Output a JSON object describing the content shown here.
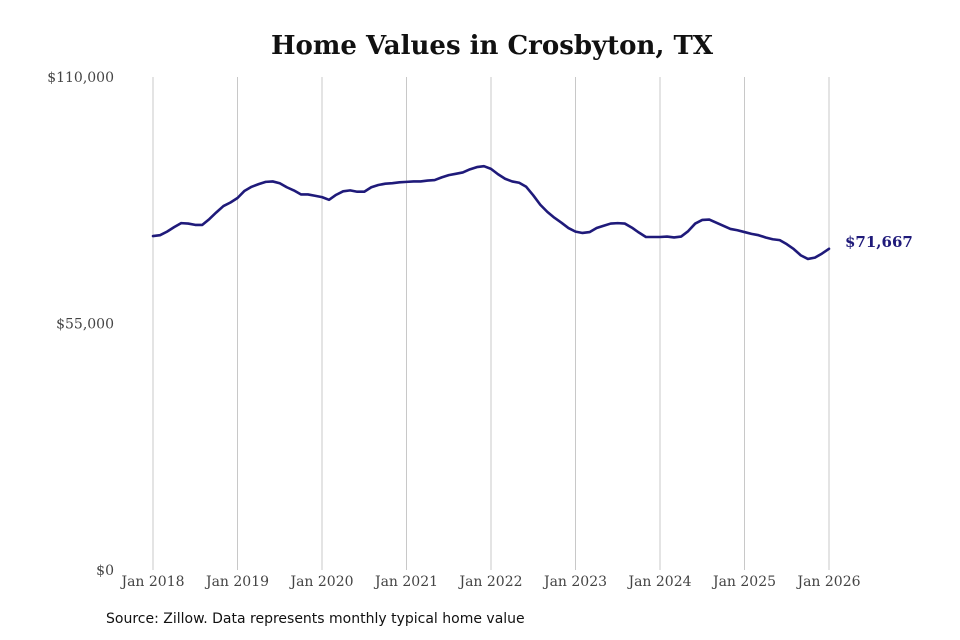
{
  "colors": {
    "line": "#1f1a7a",
    "grid": "#c8c8c8",
    "background": "#ffffff"
  },
  "source": "Source: Zillow. Data represents monthly typical home value",
  "chart_data": {
    "type": "line",
    "title": "Home Values in Crosbyton, TX",
    "xlabel": "",
    "ylabel": "",
    "ylim": [
      0,
      110000
    ],
    "y_ticks": [
      0,
      55000,
      110000
    ],
    "y_tick_labels": [
      "$0",
      "$55,000",
      "$110,000"
    ],
    "x_ticks": [
      "2018-01",
      "2019-01",
      "2020-01",
      "2021-01",
      "2022-01",
      "2023-01",
      "2024-01",
      "2025-01",
      "2026-01"
    ],
    "x_tick_labels": [
      "Jan 2018",
      "Jan 2019",
      "Jan 2020",
      "Jan 2021",
      "Jan 2022",
      "Jan 2023",
      "Jan 2024",
      "Jan 2025",
      "Jan 2026"
    ],
    "xlim": [
      "2018-01",
      "2026-01"
    ],
    "grid": "vertical at x ticks",
    "end_label": "$71,667",
    "series": [
      {
        "x": [
          "2018-01",
          "2018-02",
          "2018-03",
          "2018-04",
          "2018-05",
          "2018-06",
          "2018-07",
          "2018-08",
          "2018-09",
          "2018-10",
          "2018-11",
          "2018-12",
          "2019-01",
          "2019-02",
          "2019-03",
          "2019-04",
          "2019-05",
          "2019-06",
          "2019-07",
          "2019-08",
          "2019-09",
          "2019-10",
          "2019-11",
          "2019-12",
          "2020-01",
          "2020-02",
          "2020-03",
          "2020-04",
          "2020-05",
          "2020-06",
          "2020-07",
          "2020-08",
          "2020-09",
          "2020-10",
          "2020-11",
          "2020-12",
          "2021-01",
          "2021-02",
          "2021-03",
          "2021-04",
          "2021-05",
          "2021-06",
          "2021-07",
          "2021-08",
          "2021-09",
          "2021-10",
          "2021-11",
          "2021-12",
          "2022-01",
          "2022-02",
          "2022-03",
          "2022-04",
          "2022-05",
          "2022-06",
          "2022-07",
          "2022-08",
          "2022-09",
          "2022-10",
          "2022-11",
          "2022-12",
          "2023-01",
          "2023-02",
          "2023-03",
          "2023-04",
          "2023-05",
          "2023-06",
          "2023-07",
          "2023-08",
          "2023-09",
          "2023-10",
          "2023-11",
          "2023-12",
          "2024-01",
          "2024-02",
          "2024-03",
          "2024-04",
          "2024-05",
          "2024-06",
          "2024-07",
          "2024-08",
          "2024-09",
          "2024-10",
          "2024-11",
          "2024-12",
          "2025-01",
          "2025-02",
          "2025-03",
          "2025-04",
          "2025-05",
          "2025-06",
          "2025-07",
          "2025-08",
          "2025-09",
          "2025-10",
          "2025-11",
          "2025-12",
          "2026-01"
        ],
        "values": [
          74500,
          74700,
          75500,
          76500,
          77400,
          77300,
          77000,
          77000,
          78300,
          79800,
          81200,
          82000,
          83000,
          84600,
          85500,
          86100,
          86600,
          86700,
          86300,
          85400,
          84700,
          83800,
          83800,
          83500,
          83200,
          82600,
          83700,
          84500,
          84700,
          84400,
          84400,
          85400,
          85900,
          86200,
          86300,
          86500,
          86600,
          86700,
          86700,
          86900,
          87000,
          87600,
          88100,
          88400,
          88700,
          89400,
          89900,
          90100,
          89500,
          88300,
          87300,
          86700,
          86400,
          85500,
          83600,
          81500,
          79900,
          78600,
          77500,
          76300,
          75500,
          75200,
          75400,
          76300,
          76800,
          77300,
          77400,
          77300,
          76400,
          75300,
          74300,
          74300,
          74300,
          74400,
          74200,
          74400,
          75600,
          77300,
          78100,
          78200,
          77500,
          76800,
          76100,
          75800,
          75400,
          75000,
          74700,
          74200,
          73800,
          73600,
          72700,
          71600,
          70200,
          69400,
          69700,
          70600,
          71667
        ]
      }
    ]
  }
}
